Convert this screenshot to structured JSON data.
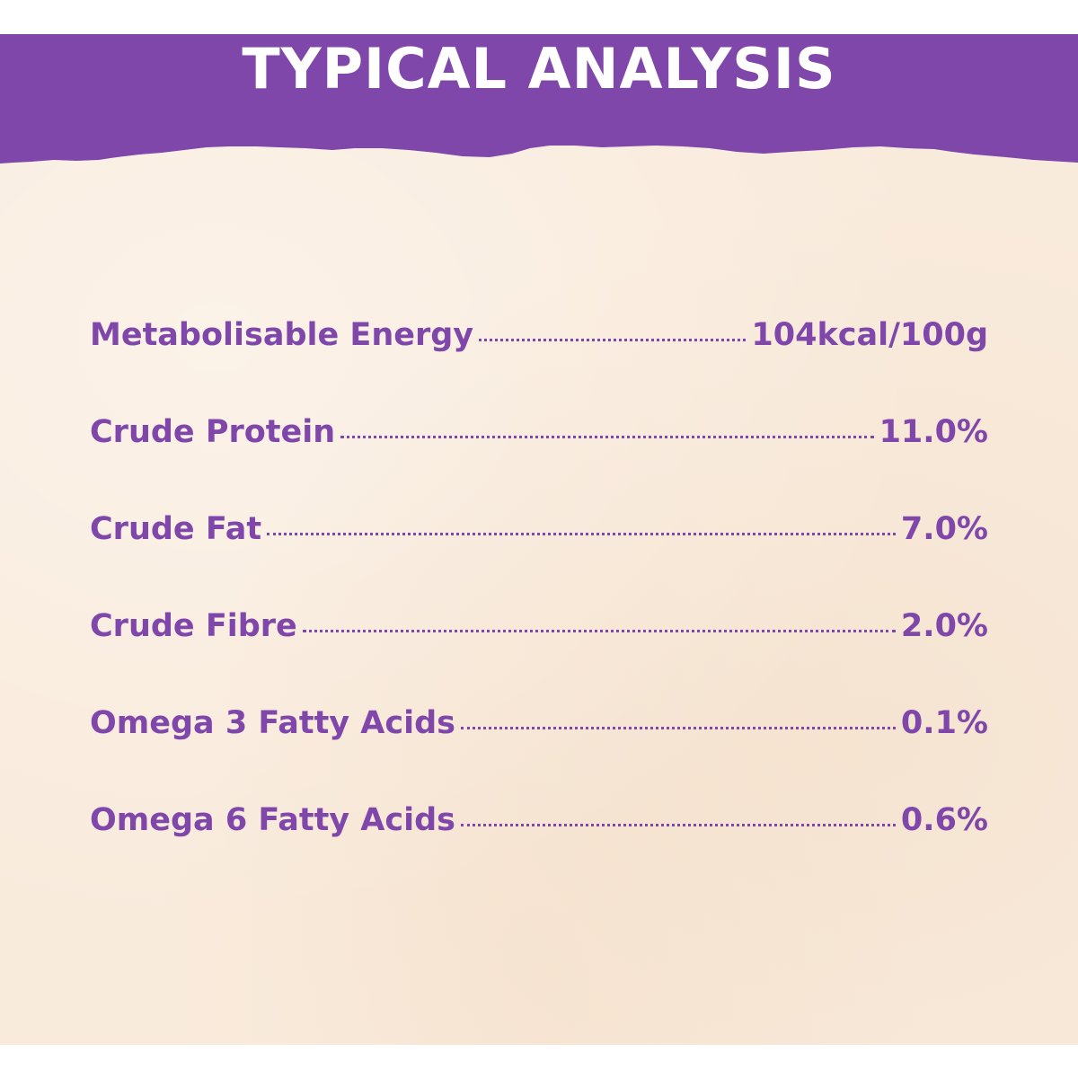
{
  "colors": {
    "accent": "#8047ab",
    "background": "#f9ebdc",
    "title_text": "#ffffff"
  },
  "header": {
    "title": "TYPICAL ANALYSIS"
  },
  "analysis": [
    {
      "label": "Metabolisable Energy",
      "value": "104kcal/100g"
    },
    {
      "label": "Crude Protein",
      "value": "11.0%"
    },
    {
      "label": "Crude Fat",
      "value": "7.0%"
    },
    {
      "label": "Crude Fibre",
      "value": "2.0%"
    },
    {
      "label": "Omega 3 Fatty Acids",
      "value": "0.1%"
    },
    {
      "label": "Omega 6 Fatty Acids",
      "value": "0.6%"
    }
  ]
}
